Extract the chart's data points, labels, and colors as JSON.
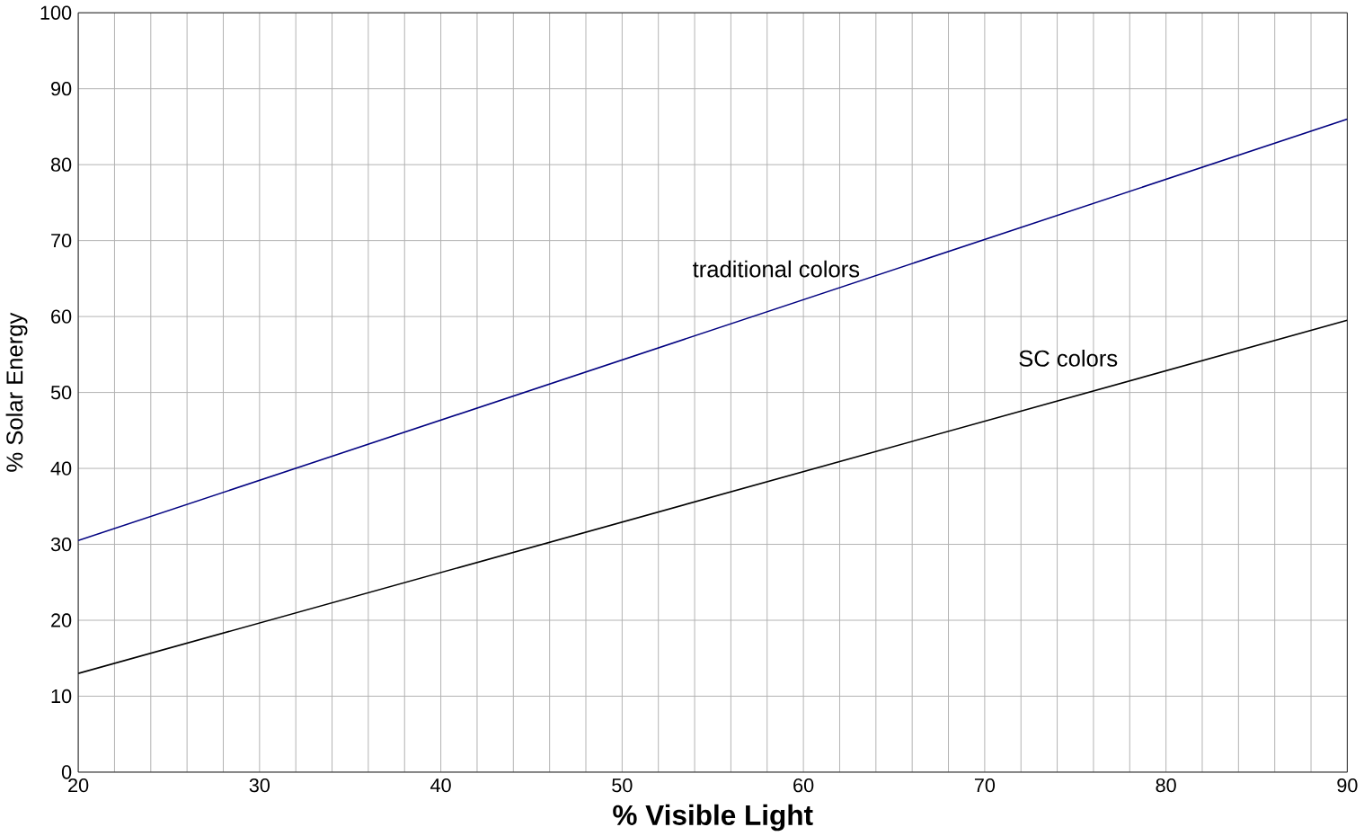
{
  "chart_data": {
    "type": "line",
    "xlabel": "% Visible Light",
    "ylabel": "% Solar Energy",
    "xlim": [
      20,
      90
    ],
    "ylim": [
      0,
      100
    ],
    "xticks": [
      20,
      {
        "value": 22,
        "label": null
      },
      {
        "value": 24,
        "label": null
      },
      {
        "value": 26,
        "label": null
      },
      {
        "value": 28,
        "label": null
      },
      30,
      {
        "value": 32,
        "label": null
      },
      {
        "value": 34,
        "label": null
      },
      {
        "value": 36,
        "label": null
      },
      {
        "value": 38,
        "label": null
      },
      40,
      {
        "value": 42,
        "label": null
      },
      {
        "value": 44,
        "label": null
      },
      {
        "value": 46,
        "label": null
      },
      {
        "value": 48,
        "label": null
      },
      50,
      {
        "value": 52,
        "label": null
      },
      {
        "value": 54,
        "label": null
      },
      {
        "value": 56,
        "label": null
      },
      {
        "value": 58,
        "label": null
      },
      60,
      {
        "value": 62,
        "label": null
      },
      {
        "value": 64,
        "label": null
      },
      {
        "value": 66,
        "label": null
      },
      {
        "value": 68,
        "label": null
      },
      70,
      {
        "value": 72,
        "label": null
      },
      {
        "value": 74,
        "label": null
      },
      {
        "value": 76,
        "label": null
      },
      {
        "value": 78,
        "label": null
      },
      80,
      {
        "value": 82,
        "label": null
      },
      {
        "value": 84,
        "label": null
      },
      {
        "value": 86,
        "label": null
      },
      {
        "value": 88,
        "label": null
      },
      90
    ],
    "yticks": [
      0,
      10,
      20,
      30,
      40,
      50,
      60,
      70,
      80,
      90,
      100
    ],
    "grid": true,
    "marker": "none",
    "line_style": "solid",
    "x": [
      20,
      90
    ],
    "series": [
      {
        "name": "traditional colors",
        "color": "#000080",
        "values": [
          30.5,
          86
        ]
      },
      {
        "name": "SC colors",
        "color": "#000000",
        "values": [
          13,
          59.5
        ]
      }
    ]
  }
}
